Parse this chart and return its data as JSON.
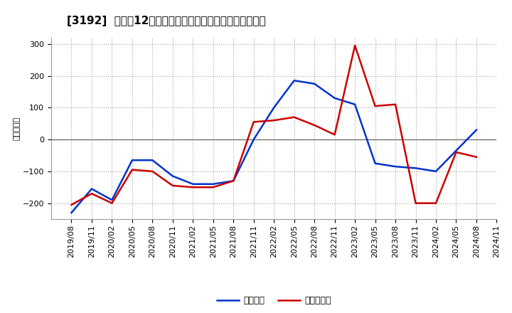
{
  "title": "[3192]  利益だ12か月移動合計の対前年同期増減額の推移",
  "ylabel": "（百万円）",
  "x_labels": [
    "2019/08",
    "2019/11",
    "2020/02",
    "2020/05",
    "2020/08",
    "2020/11",
    "2021/02",
    "2021/05",
    "2021/08",
    "2021/11",
    "2022/02",
    "2022/05",
    "2022/08",
    "2022/11",
    "2023/02",
    "2023/05",
    "2023/08",
    "2023/11",
    "2024/02",
    "2024/05",
    "2024/08",
    "2024/11"
  ],
  "keijo_rieki": [
    -230,
    -155,
    -190,
    -65,
    -65,
    -115,
    -140,
    -140,
    -130,
    0,
    100,
    185,
    175,
    130,
    110,
    -75,
    -85,
    -90,
    -100,
    -35,
    30,
    null
  ],
  "touki_junrieki": [
    -205,
    -170,
    -200,
    -95,
    -100,
    -145,
    -150,
    -150,
    -130,
    55,
    60,
    70,
    45,
    15,
    295,
    105,
    110,
    -200,
    -200,
    -40,
    -55,
    null
  ],
  "ylim": [
    -250,
    320
  ],
  "yticks": [
    -200,
    -100,
    0,
    100,
    200,
    300
  ],
  "blue_color": "#0033cc",
  "red_color": "#cc0000",
  "bg_color": "#ffffff",
  "grid_color": "#999999",
  "zero_line_color": "#666666",
  "legend_keijo": "経常利益",
  "legend_touki": "当期純利益",
  "title_fontsize": 11,
  "axis_fontsize": 8,
  "ylabel_fontsize": 8,
  "legend_fontsize": 9
}
